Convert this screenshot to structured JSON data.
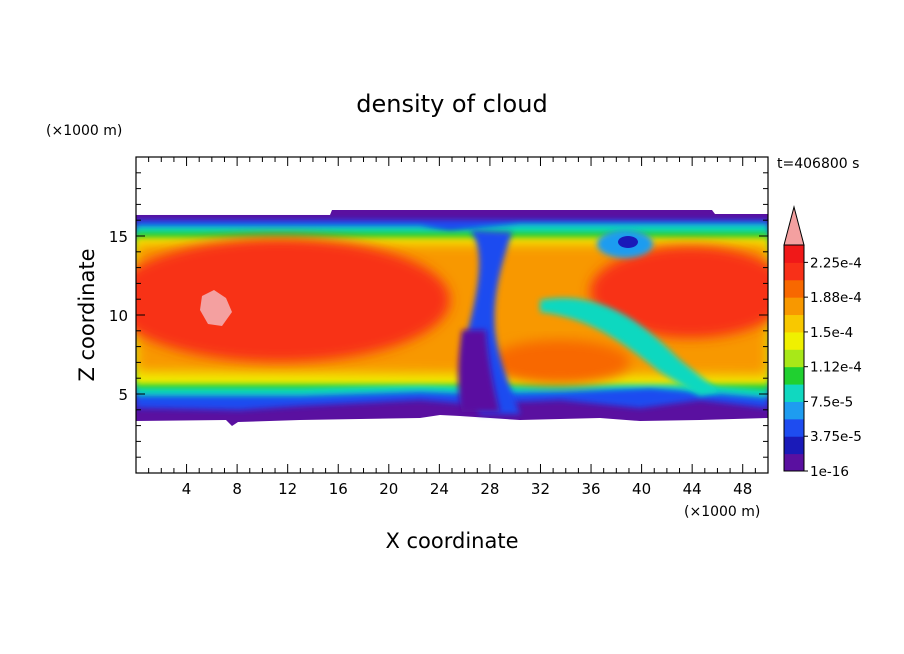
{
  "chart_data": {
    "type": "heatmap",
    "title": "density of cloud",
    "xlabel": "X coordinate",
    "ylabel": "Z coordinate",
    "x_unit": "(×1000 m)",
    "y_unit": "(×1000 m)",
    "time_label": "t=406800 s",
    "xlim": [
      0,
      50
    ],
    "ylim": [
      0,
      20
    ],
    "x_ticks": [
      4,
      8,
      12,
      16,
      20,
      24,
      28,
      32,
      36,
      40,
      44,
      48
    ],
    "y_ticks": [
      5,
      10,
      15
    ],
    "colorbar": {
      "labels": [
        "1e-16",
        "3.75e-5",
        "7.5e-5",
        "1.12e-4",
        "1.5e-4",
        "1.88e-4",
        "2.25e-4"
      ],
      "levels": [
        0,
        3.75e-05,
        7.5e-05,
        0.0001125,
        0.00015,
        0.0001875,
        0.000225
      ],
      "colors": [
        "#5a10a0",
        "#1a1ab8",
        "#1e4cf0",
        "#1e9cf0",
        "#10d8c0",
        "#20d030",
        "#a8e818",
        "#f0f000",
        "#f8c800",
        "#f89800",
        "#f86800",
        "#f83018",
        "#f01818"
      ],
      "extend_max_color": "#f4a0a0"
    }
  }
}
